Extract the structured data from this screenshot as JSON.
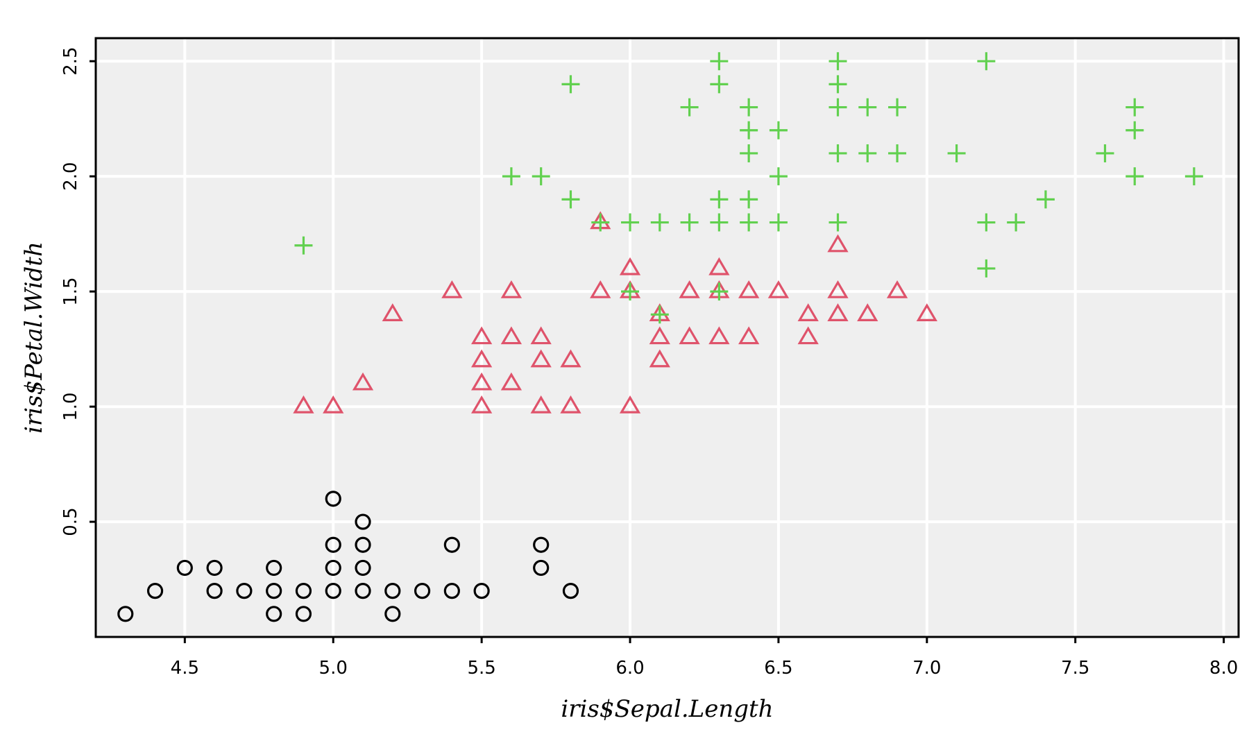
{
  "chart_data": {
    "type": "scatter",
    "title": "",
    "xlabel": "iris$Sepal.Length",
    "ylabel": "iris$Petal.Width",
    "xlim": [
      4.2,
      8.05
    ],
    "ylim": [
      0.0,
      2.6
    ],
    "xticks": [
      "4.5",
      "5.0",
      "5.5",
      "6.0",
      "6.5",
      "7.0",
      "7.5",
      "8.0"
    ],
    "yticks": [
      "0.5",
      "1.0",
      "1.5",
      "2.0",
      "2.5"
    ],
    "grid": true,
    "background": "#efefef",
    "grid_color": "#ffffff",
    "series": [
      {
        "marker": "circle",
        "color": "#000000",
        "points": [
          [
            4.3,
            0.1
          ],
          [
            4.4,
            0.2
          ],
          [
            4.5,
            0.3
          ],
          [
            4.6,
            0.3
          ],
          [
            4.6,
            0.2
          ],
          [
            4.7,
            0.2
          ],
          [
            4.8,
            0.3
          ],
          [
            4.8,
            0.2
          ],
          [
            4.8,
            0.1
          ],
          [
            4.9,
            0.2
          ],
          [
            4.9,
            0.1
          ],
          [
            5.0,
            0.6
          ],
          [
            5.0,
            0.4
          ],
          [
            5.0,
            0.3
          ],
          [
            5.0,
            0.2
          ],
          [
            5.1,
            0.5
          ],
          [
            5.1,
            0.4
          ],
          [
            5.1,
            0.3
          ],
          [
            5.1,
            0.2
          ],
          [
            5.2,
            0.2
          ],
          [
            5.2,
            0.1
          ],
          [
            5.3,
            0.2
          ],
          [
            5.4,
            0.4
          ],
          [
            5.4,
            0.2
          ],
          [
            5.5,
            0.2
          ],
          [
            5.7,
            0.4
          ],
          [
            5.7,
            0.3
          ],
          [
            5.8,
            0.2
          ]
        ]
      },
      {
        "marker": "triangle",
        "color": "#df536b",
        "points": [
          [
            4.9,
            1.0
          ],
          [
            5.0,
            1.0
          ],
          [
            5.1,
            1.1
          ],
          [
            5.2,
            1.4
          ],
          [
            5.4,
            1.5
          ],
          [
            5.5,
            1.3
          ],
          [
            5.5,
            1.2
          ],
          [
            5.5,
            1.1
          ],
          [
            5.5,
            1.0
          ],
          [
            5.6,
            1.5
          ],
          [
            5.6,
            1.3
          ],
          [
            5.6,
            1.1
          ],
          [
            5.7,
            1.3
          ],
          [
            5.7,
            1.2
          ],
          [
            5.7,
            1.0
          ],
          [
            5.8,
            1.2
          ],
          [
            5.8,
            1.0
          ],
          [
            5.9,
            1.8
          ],
          [
            5.9,
            1.5
          ],
          [
            6.0,
            1.6
          ],
          [
            6.0,
            1.5
          ],
          [
            6.0,
            1.0
          ],
          [
            6.1,
            1.4
          ],
          [
            6.1,
            1.3
          ],
          [
            6.1,
            1.2
          ],
          [
            6.2,
            1.5
          ],
          [
            6.2,
            1.3
          ],
          [
            6.3,
            1.6
          ],
          [
            6.3,
            1.5
          ],
          [
            6.3,
            1.3
          ],
          [
            6.4,
            1.5
          ],
          [
            6.4,
            1.3
          ],
          [
            6.5,
            1.5
          ],
          [
            6.6,
            1.4
          ],
          [
            6.6,
            1.3
          ],
          [
            6.7,
            1.7
          ],
          [
            6.7,
            1.5
          ],
          [
            6.7,
            1.4
          ],
          [
            6.8,
            1.4
          ],
          [
            6.9,
            1.5
          ],
          [
            7.0,
            1.4
          ]
        ]
      },
      {
        "marker": "plus",
        "color": "#61d04f",
        "points": [
          [
            4.9,
            1.7
          ],
          [
            5.6,
            2.0
          ],
          [
            5.7,
            2.0
          ],
          [
            5.8,
            2.4
          ],
          [
            5.8,
            1.9
          ],
          [
            5.9,
            1.8
          ],
          [
            6.0,
            1.8
          ],
          [
            6.0,
            1.5
          ],
          [
            6.1,
            1.8
          ],
          [
            6.1,
            1.4
          ],
          [
            6.2,
            2.3
          ],
          [
            6.2,
            1.8
          ],
          [
            6.3,
            2.5
          ],
          [
            6.3,
            2.4
          ],
          [
            6.3,
            1.9
          ],
          [
            6.3,
            1.8
          ],
          [
            6.3,
            1.5
          ],
          [
            6.4,
            2.3
          ],
          [
            6.4,
            2.2
          ],
          [
            6.4,
            2.1
          ],
          [
            6.4,
            1.9
          ],
          [
            6.4,
            1.8
          ],
          [
            6.5,
            2.2
          ],
          [
            6.5,
            2.0
          ],
          [
            6.5,
            1.8
          ],
          [
            6.7,
            2.5
          ],
          [
            6.7,
            2.4
          ],
          [
            6.7,
            2.3
          ],
          [
            6.7,
            2.1
          ],
          [
            6.7,
            1.8
          ],
          [
            6.8,
            2.3
          ],
          [
            6.8,
            2.1
          ],
          [
            6.9,
            2.3
          ],
          [
            6.9,
            2.1
          ],
          [
            7.1,
            2.1
          ],
          [
            7.2,
            2.5
          ],
          [
            7.2,
            1.8
          ],
          [
            7.2,
            1.6
          ],
          [
            7.3,
            1.8
          ],
          [
            7.4,
            1.9
          ],
          [
            7.6,
            2.1
          ],
          [
            7.7,
            2.3
          ],
          [
            7.7,
            2.2
          ],
          [
            7.7,
            2.0
          ],
          [
            7.9,
            2.0
          ]
        ]
      }
    ]
  }
}
